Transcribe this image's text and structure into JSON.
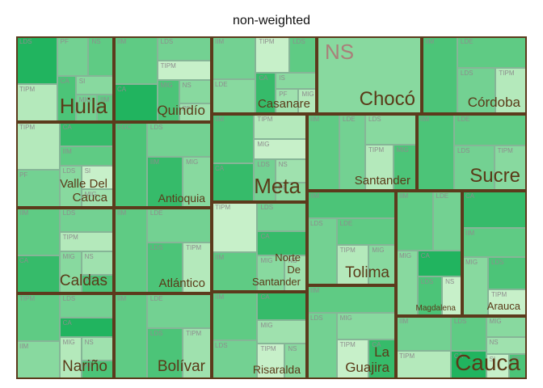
{
  "chart_data": {
    "type": "treemap",
    "title": "non-weighted",
    "palette": [
      "#21b45f",
      "#36bb6a",
      "#4cc478",
      "#5fcb84",
      "#73d192",
      "#88d99f",
      "#9fe1ae",
      "#b4e9bb",
      "#c7f0c9"
    ],
    "border_color": "#5c3a1c",
    "label_color": "#5a3a18",
    "groups": [
      {
        "name": "Huila",
        "cells": [
          [
            "LDS",
            0
          ],
          [
            "TIPM",
            7
          ],
          [
            "PF",
            4
          ],
          [
            "NS",
            3
          ],
          [
            "CA",
            2
          ],
          [
            "SI",
            5
          ],
          [
            "MIG",
            4
          ],
          [
            "IIM",
            3
          ]
        ]
      },
      {
        "name": "Quindío",
        "cells": [
          [
            "IIM",
            3
          ],
          [
            "CA",
            0
          ],
          [
            "LDS",
            4
          ],
          [
            "TIPM",
            8
          ],
          [
            "MIG",
            2
          ],
          [
            "NS",
            5
          ],
          [
            "PF",
            6
          ]
        ]
      },
      {
        "name": "Casanare",
        "cells": [
          [
            "IIM",
            4
          ],
          [
            "LDE",
            5
          ],
          [
            "TIPM",
            8
          ],
          [
            "LDS",
            3
          ],
          [
            "CA",
            1
          ],
          [
            "IS",
            5
          ],
          [
            "PF",
            6
          ],
          [
            "MIG",
            7
          ]
        ]
      },
      {
        "name": "Chocó",
        "cells": [
          [
            "NS",
            5
          ]
        ]
      },
      {
        "name": "Córdoba",
        "cells": [
          [
            "IIM",
            2
          ],
          [
            "LDE",
            3
          ],
          [
            "LDS",
            4
          ],
          [
            "TIPM",
            7
          ]
        ]
      },
      {
        "name": "Valle Del\nCauca",
        "cells": [
          [
            "TIPM",
            7
          ],
          [
            "PF",
            4
          ],
          [
            "CA",
            1
          ],
          [
            "IIM",
            3
          ],
          [
            "LDS",
            5
          ],
          [
            "SI",
            8
          ],
          [
            "MIG",
            6
          ]
        ]
      },
      {
        "name": "Antioquia",
        "cells": [
          [
            "EGC",
            2
          ],
          [
            "LDS",
            4
          ],
          [
            "IIM",
            1
          ],
          [
            "MIG",
            5
          ]
        ]
      },
      {
        "name": "Meta",
        "cells": [
          [
            "IIM",
            2
          ],
          [
            "CA",
            1
          ],
          [
            "TIPM",
            7
          ],
          [
            "MIG",
            8
          ],
          [
            "LDS",
            4
          ],
          [
            "NS",
            6
          ],
          [
            "PF",
            5
          ]
        ]
      },
      {
        "name": "Santander",
        "cells": [
          [
            "IIM",
            3
          ],
          [
            "LDE",
            4
          ],
          [
            "LDS",
            5
          ],
          [
            "TIPM",
            7
          ],
          [
            "MIG",
            2
          ]
        ]
      },
      {
        "name": "Sucre",
        "cells": [
          [
            "IIM",
            2
          ],
          [
            "LDE",
            3
          ],
          [
            "LDS",
            4
          ],
          [
            "TIPM",
            5
          ]
        ]
      },
      {
        "name": "Caldas",
        "cells": [
          [
            "IIM",
            3
          ],
          [
            "CA",
            1
          ],
          [
            "LDS",
            4
          ],
          [
            "TIPM",
            7
          ],
          [
            "MIG",
            5
          ],
          [
            "NS",
            6
          ],
          [
            "PF",
            2
          ]
        ]
      },
      {
        "name": "Atlántico",
        "cells": [
          [
            "IIM",
            3
          ],
          [
            "LDE",
            4
          ],
          [
            "LDS",
            2
          ],
          [
            "TIPM",
            7
          ]
        ]
      },
      {
        "name": "Norte\nDe\nSantander",
        "cells": [
          [
            "TIPM",
            8
          ],
          [
            "IIM",
            3
          ],
          [
            "LDS",
            4
          ],
          [
            "CA",
            1
          ],
          [
            "MIG",
            5
          ],
          [
            "NS",
            6
          ]
        ]
      },
      {
        "name": "Tolima",
        "cells": [
          [
            "IIM",
            2
          ],
          [
            "LDS",
            4
          ],
          [
            "LDE",
            3
          ],
          [
            "TIPM",
            7
          ],
          [
            "MIG",
            5
          ]
        ]
      },
      {
        "name": "Magdalena",
        "cells": [
          [
            "IIM",
            3
          ],
          [
            "LDE",
            4
          ],
          [
            "MIG",
            5
          ],
          [
            "CA",
            0
          ],
          [
            "LDS",
            2
          ],
          [
            "NS",
            8
          ]
        ]
      },
      {
        "name": "Arauca",
        "cells": [
          [
            "CA",
            1
          ],
          [
            "IIM",
            3
          ],
          [
            "MIG",
            5
          ],
          [
            "LDS",
            2
          ],
          [
            "TIPM",
            8
          ]
        ]
      },
      {
        "name": "Nariño",
        "cells": [
          [
            "TIPM",
            3
          ],
          [
            "IIM",
            5
          ],
          [
            "LDS",
            4
          ],
          [
            "CA",
            0
          ],
          [
            "MIG",
            7
          ],
          [
            "NS",
            6
          ],
          [
            "PF",
            2
          ]
        ]
      },
      {
        "name": "Bolívar",
        "cells": [
          [
            "IIM",
            3
          ],
          [
            "LDE",
            4
          ],
          [
            "LDS",
            2
          ],
          [
            "TIPM",
            6
          ]
        ]
      },
      {
        "name": "Risaralda",
        "cells": [
          [
            "IIM",
            3
          ],
          [
            "LDS",
            4
          ],
          [
            "CA",
            1
          ],
          [
            "MIG",
            6
          ],
          [
            "TIPM",
            8
          ],
          [
            "NS",
            5
          ]
        ]
      },
      {
        "name": "La\nGuajira",
        "cells": [
          [
            "IIM",
            3
          ],
          [
            "LDS",
            4
          ],
          [
            "MIG",
            5
          ],
          [
            "TIPM",
            8
          ],
          [
            "CA",
            1
          ]
        ]
      },
      {
        "name": "Cauca",
        "cells": [
          [
            "IIM",
            4
          ],
          [
            "TIPM",
            7
          ],
          [
            "LDS",
            3
          ],
          [
            "CA",
            0
          ],
          [
            "MIG",
            5
          ],
          [
            "NS",
            6
          ],
          [
            "SI",
            8
          ],
          [
            "PF",
            2
          ]
        ]
      }
    ]
  }
}
